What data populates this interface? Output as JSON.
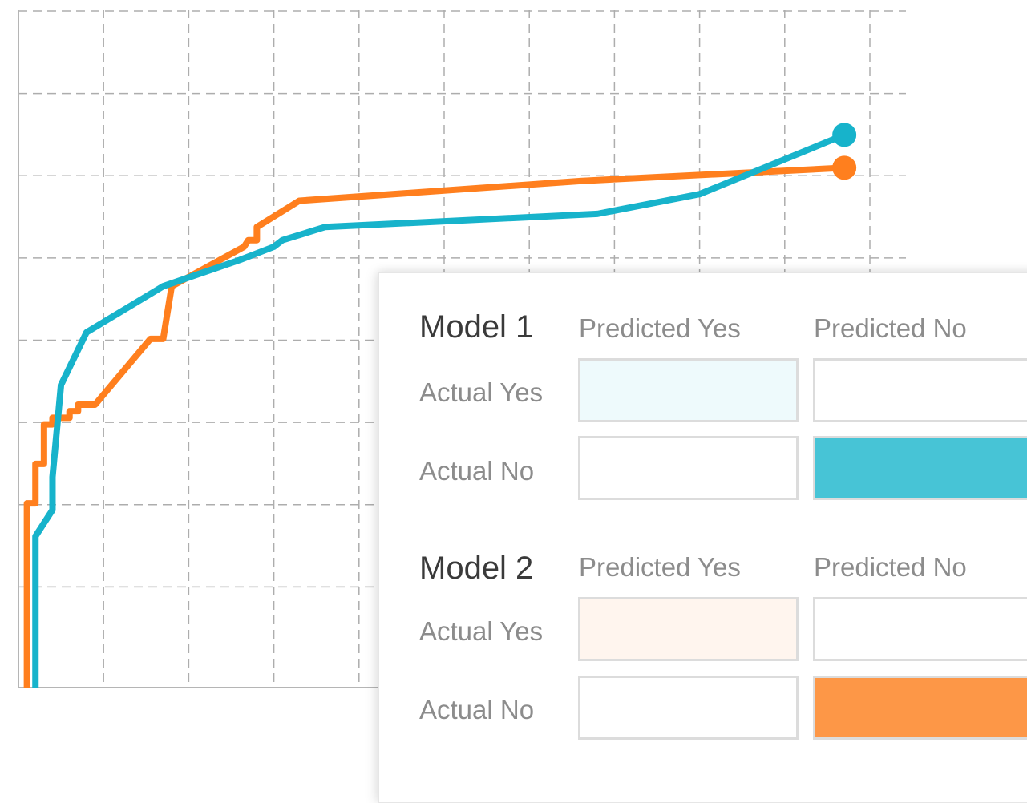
{
  "chart_data": {
    "type": "line",
    "title": "",
    "xlabel": "",
    "ylabel": "",
    "xlim": [
      0,
      1
    ],
    "ylim": [
      0,
      1
    ],
    "grid": true,
    "series": [
      {
        "color": "#ff7f1e",
        "points": [
          [
            0.01,
            0.0
          ],
          [
            0.01,
            0.28
          ],
          [
            0.02,
            0.28
          ],
          [
            0.02,
            0.34
          ],
          [
            0.03,
            0.34
          ],
          [
            0.03,
            0.4
          ],
          [
            0.04,
            0.4
          ],
          [
            0.04,
            0.41
          ],
          [
            0.06,
            0.41
          ],
          [
            0.06,
            0.42
          ],
          [
            0.07,
            0.42
          ],
          [
            0.07,
            0.43
          ],
          [
            0.09,
            0.43
          ],
          [
            0.155,
            0.53
          ],
          [
            0.17,
            0.53
          ],
          [
            0.18,
            0.61
          ],
          [
            0.265,
            0.67
          ],
          [
            0.27,
            0.68
          ],
          [
            0.28,
            0.68
          ],
          [
            0.28,
            0.7
          ],
          [
            0.33,
            0.74
          ],
          [
            0.66,
            0.77
          ],
          [
            0.97,
            0.79
          ]
        ]
      },
      {
        "color": "#17b3cb",
        "points": [
          [
            0.02,
            0.0
          ],
          [
            0.02,
            0.23
          ],
          [
            0.04,
            0.27
          ],
          [
            0.04,
            0.32
          ],
          [
            0.05,
            0.46
          ],
          [
            0.08,
            0.54
          ],
          [
            0.17,
            0.61
          ],
          [
            0.26,
            0.65
          ],
          [
            0.3,
            0.67
          ],
          [
            0.31,
            0.68
          ],
          [
            0.36,
            0.7
          ],
          [
            0.68,
            0.72
          ],
          [
            0.8,
            0.75
          ],
          [
            0.97,
            0.84
          ]
        ]
      }
    ]
  },
  "panel": {
    "model1": {
      "title": "Model 1",
      "col_yes": "Predicted Yes",
      "col_no": "Predicted No",
      "row_yes": "Actual Yes",
      "row_no": "Actual No",
      "cell_colors": [
        "#eefafc",
        "#ffffff",
        "#ffffff",
        "#47c4d6"
      ]
    },
    "model2": {
      "title": "Model 2",
      "col_yes": "Predicted Yes",
      "col_no": "Predicted No",
      "row_yes": "Actual Yes",
      "row_no": "Actual No",
      "cell_colors": [
        "#fff5ee",
        "#ffffff",
        "#ffffff",
        "#fd9747"
      ]
    }
  }
}
